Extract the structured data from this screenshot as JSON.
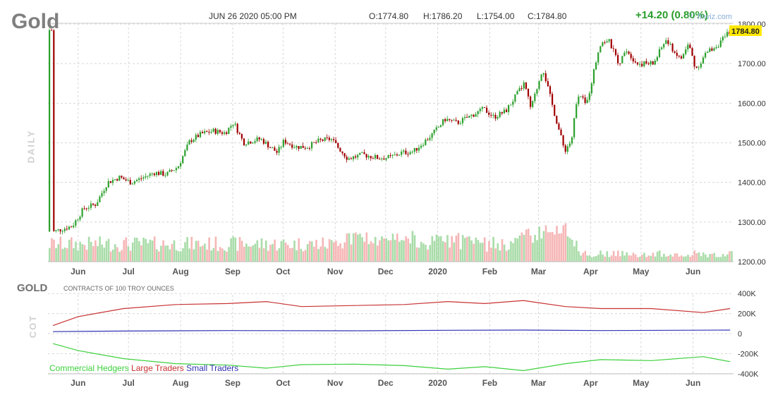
{
  "header": {
    "symbol": "Gold",
    "datetime": "JUN 26 2020 05:00 PM",
    "open": "O:1774.80",
    "high": "H:1786.20",
    "low": "L:1754.00",
    "close": "C:1784.80",
    "change": "+14.20 (0.80%)",
    "brand": "ⓕ finviz.com",
    "last_price": "1784.80"
  },
  "labels": {
    "daily": "DAILY",
    "cot": "COT",
    "cot_symbol": "GOLD",
    "cot_units": "CONTRACTS OF 100 TROY OUNCES"
  },
  "colors": {
    "up": "#2ca02c",
    "down": "#a00000",
    "vol_up": "#a9dca9",
    "vol_down": "#f6b6b6",
    "commercial": "#3cd03c",
    "large": "#c83232",
    "small": "#3232b4",
    "price_tag": "#ffe800",
    "grid": "#d8d8d8"
  },
  "chart_data": [
    {
      "type": "candlestick",
      "title": "Gold",
      "x_tick_labels": [
        "Jun",
        "Jul",
        "Aug",
        "Sep",
        "Oct",
        "Nov",
        "Dec",
        "2020",
        "Feb",
        "Mar",
        "Apr",
        "May",
        "Jun"
      ],
      "y_ticks": [
        1200,
        1300,
        1400,
        1500,
        1600,
        1700,
        1800
      ],
      "ylim": [
        1200,
        1800
      ],
      "last_close": 1784.8,
      "close_path": [
        [
          "2019-05-20",
          1276
        ],
        [
          "2019-05-31",
          1290
        ],
        [
          "2019-06-07",
          1335
        ],
        [
          "2019-06-14",
          1345
        ],
        [
          "2019-06-21",
          1400
        ],
        [
          "2019-06-28",
          1413
        ],
        [
          "2019-07-05",
          1400
        ],
        [
          "2019-07-12",
          1412
        ],
        [
          "2019-07-19",
          1425
        ],
        [
          "2019-07-26",
          1420
        ],
        [
          "2019-08-02",
          1440
        ],
        [
          "2019-08-09",
          1505
        ],
        [
          "2019-08-16",
          1523
        ],
        [
          "2019-08-23",
          1530
        ],
        [
          "2019-08-30",
          1525
        ],
        [
          "2019-09-04",
          1552
        ],
        [
          "2019-09-10",
          1500
        ],
        [
          "2019-09-20",
          1510
        ],
        [
          "2019-09-30",
          1475
        ],
        [
          "2019-10-04",
          1505
        ],
        [
          "2019-10-11",
          1490
        ],
        [
          "2019-10-18",
          1490
        ],
        [
          "2019-10-25",
          1505
        ],
        [
          "2019-11-01",
          1510
        ],
        [
          "2019-11-11",
          1460
        ],
        [
          "2019-11-20",
          1470
        ],
        [
          "2019-11-29",
          1462
        ],
        [
          "2019-12-06",
          1463
        ],
        [
          "2019-12-13",
          1475
        ],
        [
          "2019-12-20",
          1478
        ],
        [
          "2019-12-31",
          1520
        ],
        [
          "2020-01-08",
          1560
        ],
        [
          "2020-01-15",
          1550
        ],
        [
          "2020-01-24",
          1570
        ],
        [
          "2020-01-31",
          1585
        ],
        [
          "2020-02-06",
          1565
        ],
        [
          "2020-02-13",
          1580
        ],
        [
          "2020-02-24",
          1650
        ],
        [
          "2020-02-28",
          1585
        ],
        [
          "2020-03-06",
          1690
        ],
        [
          "2020-03-12",
          1590
        ],
        [
          "2020-03-19",
          1480
        ],
        [
          "2020-03-23",
          1505
        ],
        [
          "2020-03-27",
          1625
        ],
        [
          "2020-04-01",
          1595
        ],
        [
          "2020-04-09",
          1750
        ],
        [
          "2020-04-14",
          1760
        ],
        [
          "2020-04-21",
          1695
        ],
        [
          "2020-04-24",
          1740
        ],
        [
          "2020-05-01",
          1700
        ],
        [
          "2020-05-11",
          1700
        ],
        [
          "2020-05-18",
          1760
        ],
        [
          "2020-05-27",
          1710
        ],
        [
          "2020-06-01",
          1750
        ],
        [
          "2020-06-05",
          1685
        ],
        [
          "2020-06-12",
          1730
        ],
        [
          "2020-06-19",
          1750
        ],
        [
          "2020-06-26",
          1784.8
        ]
      ]
    },
    {
      "type": "line",
      "title": "COT",
      "x_tick_labels": [
        "Jun",
        "Jul",
        "Aug",
        "Sep",
        "Oct",
        "Nov",
        "Dec",
        "2020",
        "Feb",
        "Mar",
        "Apr",
        "May",
        "Jun"
      ],
      "y_tick_labels": [
        "400K",
        "200K",
        "0",
        "-200K",
        "-400K"
      ],
      "y_ticks": [
        400000,
        200000,
        0,
        -200000,
        -400000
      ],
      "ylim": [
        -400000,
        400000
      ],
      "series": [
        {
          "name": "Commercial Hedgers",
          "points": [
            [
              "2019-05-20",
              -100000
            ],
            [
              "2019-06-04",
              -170000
            ],
            [
              "2019-07-01",
              -250000
            ],
            [
              "2019-08-01",
              -300000
            ],
            [
              "2019-09-01",
              -315000
            ],
            [
              "2019-09-24",
              -345000
            ],
            [
              "2019-10-15",
              -310000
            ],
            [
              "2019-11-15",
              -305000
            ],
            [
              "2019-12-15",
              -320000
            ],
            [
              "2020-01-10",
              -355000
            ],
            [
              "2020-02-01",
              -330000
            ],
            [
              "2020-02-24",
              -370000
            ],
            [
              "2020-03-20",
              -300000
            ],
            [
              "2020-04-10",
              -260000
            ],
            [
              "2020-05-10",
              -270000
            ],
            [
              "2020-06-10",
              -230000
            ],
            [
              "2020-06-26",
              -280000
            ]
          ]
        },
        {
          "name": "Large Traders",
          "points": [
            [
              "2019-05-20",
              80000
            ],
            [
              "2019-06-04",
              170000
            ],
            [
              "2019-07-01",
              250000
            ],
            [
              "2019-08-01",
              290000
            ],
            [
              "2019-09-01",
              300000
            ],
            [
              "2019-09-24",
              320000
            ],
            [
              "2019-10-15",
              270000
            ],
            [
              "2019-11-15",
              280000
            ],
            [
              "2019-12-15",
              290000
            ],
            [
              "2020-01-10",
              320000
            ],
            [
              "2020-02-01",
              300000
            ],
            [
              "2020-02-24",
              330000
            ],
            [
              "2020-03-20",
              270000
            ],
            [
              "2020-04-10",
              250000
            ],
            [
              "2020-05-10",
              250000
            ],
            [
              "2020-06-10",
              210000
            ],
            [
              "2020-06-26",
              250000
            ]
          ]
        },
        {
          "name": "Small Traders",
          "points": [
            [
              "2019-05-20",
              20000
            ],
            [
              "2019-07-01",
              25000
            ],
            [
              "2019-09-01",
              30000
            ],
            [
              "2019-11-15",
              28000
            ],
            [
              "2020-01-10",
              33000
            ],
            [
              "2020-02-24",
              35000
            ],
            [
              "2020-04-10",
              30000
            ],
            [
              "2020-06-26",
              35000
            ]
          ]
        }
      ]
    }
  ]
}
